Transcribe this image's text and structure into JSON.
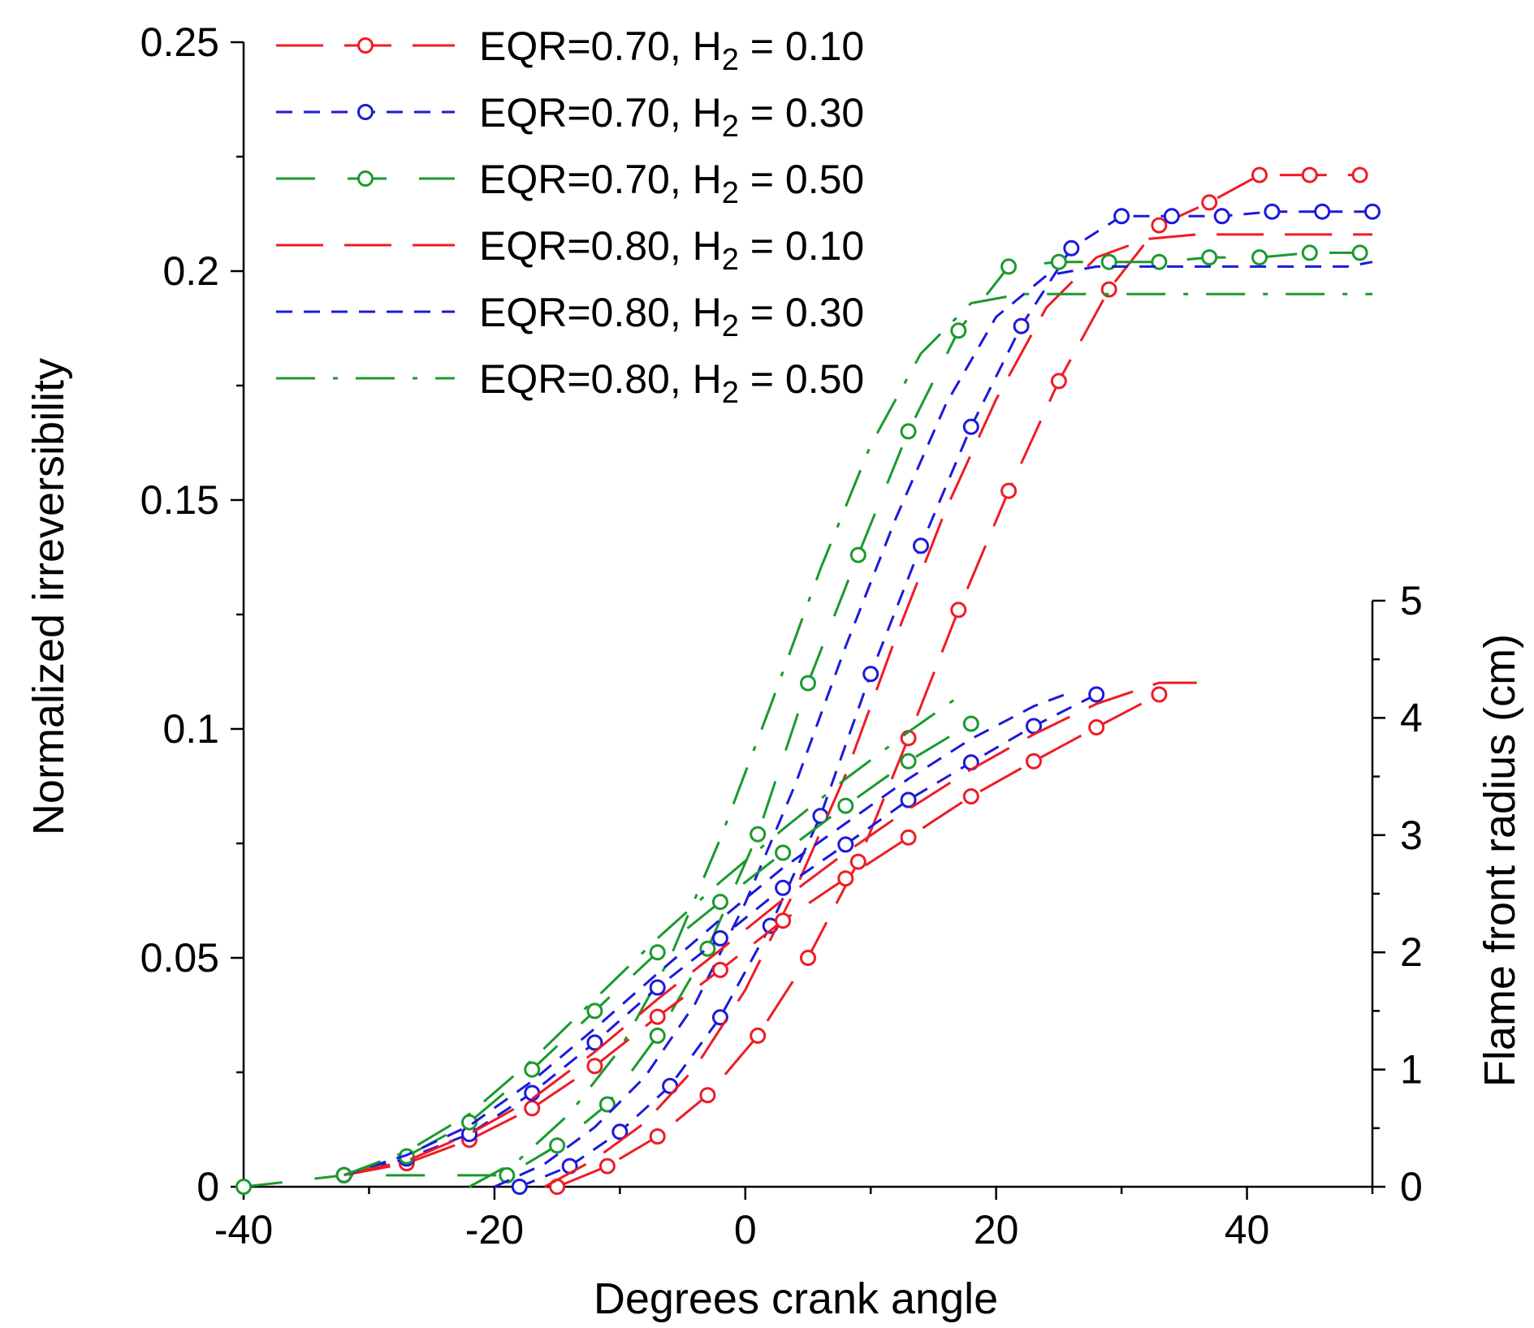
{
  "chart_data": {
    "type": "line",
    "title": "",
    "xlabel": "Degrees crank angle",
    "ylabel": "Normalized irreversibility",
    "y2label": "Flame front radius (cm)",
    "xlim": [
      -40,
      50
    ],
    "ylim": [
      0,
      0.25
    ],
    "y2lim": [
      0,
      5
    ],
    "xticks": [
      "-40",
      "-20",
      "0",
      "20",
      "40"
    ],
    "yticks": [
      "0",
      "0.05",
      "0.1",
      "0.15",
      "0.2",
      "0.25"
    ],
    "y2ticks": [
      "0",
      "1",
      "2",
      "3",
      "4",
      "5"
    ],
    "grid": false,
    "legend_position": "top-left",
    "series_colors": {
      "red": "#ee1c25",
      "blue": "#1a1adb",
      "green": "#1a9a2e"
    },
    "legend": [
      {
        "eqr": "EQR=0.70, H",
        "sub": "2",
        "val": " = 0.10",
        "color": "red",
        "dash": "long",
        "marker": true
      },
      {
        "eqr": "EQR=0.70, H",
        "sub": "2",
        "val": " = 0.30",
        "color": "blue",
        "dash": "short",
        "marker": true
      },
      {
        "eqr": "EQR=0.70, H",
        "sub": "2",
        "val": " = 0.50",
        "color": "green",
        "dash": "longgap",
        "marker": true
      },
      {
        "eqr": "EQR=0.80, H",
        "sub": "2",
        "val": " = 0.10",
        "color": "red",
        "dash": "long",
        "marker": false
      },
      {
        "eqr": "EQR=0.80, H",
        "sub": "2",
        "val": " = 0.30",
        "color": "blue",
        "dash": "short",
        "marker": false
      },
      {
        "eqr": "EQR=0.80, H",
        "sub": "2",
        "val": " = 0.50",
        "color": "green",
        "dash": "dashdot",
        "marker": false
      }
    ],
    "series": [
      {
        "name": "EQR=0.70, H2 = 0.10 (irreversibility)",
        "axis": "left",
        "color": "red",
        "dash": "long",
        "marker": true,
        "x": [
          -15,
          -11,
          -7,
          -3,
          1,
          5,
          9,
          13,
          17,
          21,
          25,
          29,
          33,
          37,
          41,
          45,
          49
        ],
        "y": [
          0,
          0.0045,
          0.011,
          0.02,
          0.033,
          0.05,
          0.071,
          0.098,
          0.126,
          0.152,
          0.176,
          0.196,
          0.21,
          0.215,
          0.221,
          0.221,
          0.221
        ]
      },
      {
        "name": "EQR=0.70, H2 = 0.30 (irreversibility)",
        "axis": "left",
        "color": "blue",
        "dash": "short",
        "marker": true,
        "x": [
          -18,
          -14,
          -10,
          -6,
          -2,
          2,
          6,
          10,
          14,
          18,
          22,
          26,
          30,
          34,
          38,
          42,
          46,
          50
        ],
        "y": [
          0,
          0.0045,
          0.012,
          0.022,
          0.037,
          0.057,
          0.081,
          0.112,
          0.14,
          0.166,
          0.188,
          0.205,
          0.212,
          0.212,
          0.212,
          0.213,
          0.213,
          0.213
        ]
      },
      {
        "name": "EQR=0.70, H2 = 0.50 (irreversibility)",
        "axis": "left",
        "color": "green",
        "dash": "longgap",
        "marker": true,
        "x": [
          -40,
          -32,
          -19,
          -15,
          -11,
          -7,
          -3,
          1,
          5,
          9,
          13,
          17,
          21,
          25,
          29,
          33,
          37,
          41,
          45,
          49
        ],
        "y": [
          0,
          0.0025,
          0.0025,
          0.009,
          0.018,
          0.033,
          0.052,
          0.077,
          0.11,
          0.138,
          0.165,
          0.187,
          0.201,
          0.202,
          0.202,
          0.202,
          0.203,
          0.203,
          0.204,
          0.204
        ]
      },
      {
        "name": "EQR=0.80, H2 = 0.10 (irreversibility)",
        "axis": "left",
        "color": "red",
        "dash": "long",
        "marker": false,
        "x": [
          -16,
          -12,
          -8,
          -4,
          0,
          4,
          8,
          12,
          16,
          20,
          24,
          28,
          32,
          36,
          40,
          44,
          48,
          50
        ],
        "y": [
          0,
          0.006,
          0.014,
          0.026,
          0.043,
          0.065,
          0.09,
          0.12,
          0.148,
          0.172,
          0.192,
          0.203,
          0.207,
          0.208,
          0.208,
          0.208,
          0.208,
          0.208
        ]
      },
      {
        "name": "EQR=0.80, H2 = 0.30 (irreversibility)",
        "axis": "left",
        "color": "blue",
        "dash": "short",
        "marker": false,
        "x": [
          -20,
          -16,
          -12,
          -8,
          -4,
          0,
          4,
          8,
          12,
          16,
          20,
          24,
          28,
          32,
          36,
          40,
          44,
          48,
          50
        ],
        "y": [
          0,
          0.005,
          0.013,
          0.024,
          0.04,
          0.062,
          0.088,
          0.118,
          0.146,
          0.171,
          0.19,
          0.199,
          0.201,
          0.201,
          0.201,
          0.201,
          0.201,
          0.201,
          0.202
        ]
      },
      {
        "name": "EQR=0.80, H2 = 0.50 (irreversibility)",
        "axis": "left",
        "color": "green",
        "dash": "dashdot",
        "marker": false,
        "x": [
          -22,
          -18,
          -14,
          -10,
          -6,
          -2,
          2,
          6,
          10,
          14,
          18,
          22,
          26,
          30,
          34,
          38,
          42,
          46,
          50
        ],
        "y": [
          0,
          0.006,
          0.016,
          0.03,
          0.05,
          0.076,
          0.105,
          0.135,
          0.162,
          0.182,
          0.193,
          0.195,
          0.195,
          0.195,
          0.195,
          0.195,
          0.195,
          0.195,
          0.195
        ]
      },
      {
        "name": "EQR=0.70, H2 = 0.10 (flame radius)",
        "axis": "right",
        "color": "red",
        "dash": "long",
        "marker": true,
        "x": [
          -32,
          -27,
          -22,
          -17,
          -12,
          -7,
          -2,
          3,
          8,
          13,
          18,
          23,
          28,
          33
        ],
        "y": [
          0.1,
          0.2,
          0.4,
          0.67,
          1.03,
          1.45,
          1.85,
          2.27,
          2.63,
          2.98,
          3.33,
          3.63,
          3.92,
          4.2
        ]
      },
      {
        "name": "EQR=0.70, H2 = 0.30 (flame radius)",
        "axis": "right",
        "color": "blue",
        "dash": "short",
        "marker": true,
        "x": [
          -32,
          -27,
          -22,
          -17,
          -12,
          -7,
          -2,
          3,
          8,
          13,
          18,
          23,
          28
        ],
        "y": [
          0.1,
          0.24,
          0.45,
          0.8,
          1.23,
          1.7,
          2.12,
          2.55,
          2.92,
          3.3,
          3.62,
          3.93,
          4.2
        ]
      },
      {
        "name": "EQR=0.70, H2 = 0.50 (flame radius)",
        "axis": "right",
        "color": "green",
        "dash": "longgap",
        "marker": true,
        "x": [
          -32,
          -27,
          -22,
          -17,
          -12,
          -7,
          -2,
          3,
          8,
          13,
          18
        ],
        "y": [
          0.1,
          0.26,
          0.55,
          1.0,
          1.5,
          2.0,
          2.43,
          2.85,
          3.25,
          3.63,
          3.95
        ]
      },
      {
        "name": "EQR=0.80, H2 = 0.10 (flame radius)",
        "axis": "right",
        "color": "red",
        "dash": "long",
        "marker": false,
        "x": [
          -32,
          -27,
          -22,
          -17,
          -12,
          -7,
          -2,
          3,
          8,
          13,
          18,
          23,
          28,
          33,
          36
        ],
        "y": [
          0.1,
          0.22,
          0.45,
          0.75,
          1.15,
          1.6,
          2.02,
          2.45,
          2.85,
          3.22,
          3.56,
          3.86,
          4.12,
          4.3,
          4.3
        ]
      },
      {
        "name": "EQR=0.80, H2 = 0.30 (flame radius)",
        "axis": "right",
        "color": "blue",
        "dash": "short",
        "marker": false,
        "x": [
          -32,
          -27,
          -22,
          -17,
          -12,
          -7,
          -2,
          3,
          8,
          13,
          18,
          23,
          26
        ],
        "y": [
          0.1,
          0.27,
          0.52,
          0.9,
          1.35,
          1.82,
          2.28,
          2.72,
          3.1,
          3.48,
          3.82,
          4.1,
          4.22
        ]
      },
      {
        "name": "EQR=0.80, H2 = 0.50 (flame radius)",
        "axis": "right",
        "color": "green",
        "dash": "dashdot",
        "marker": false,
        "x": [
          -32,
          -27,
          -22,
          -17,
          -12,
          -7,
          -2,
          3,
          8,
          13,
          17
        ],
        "y": [
          0.1,
          0.3,
          0.62,
          1.08,
          1.6,
          2.12,
          2.6,
          3.05,
          3.48,
          3.88,
          4.18
        ]
      }
    ]
  }
}
